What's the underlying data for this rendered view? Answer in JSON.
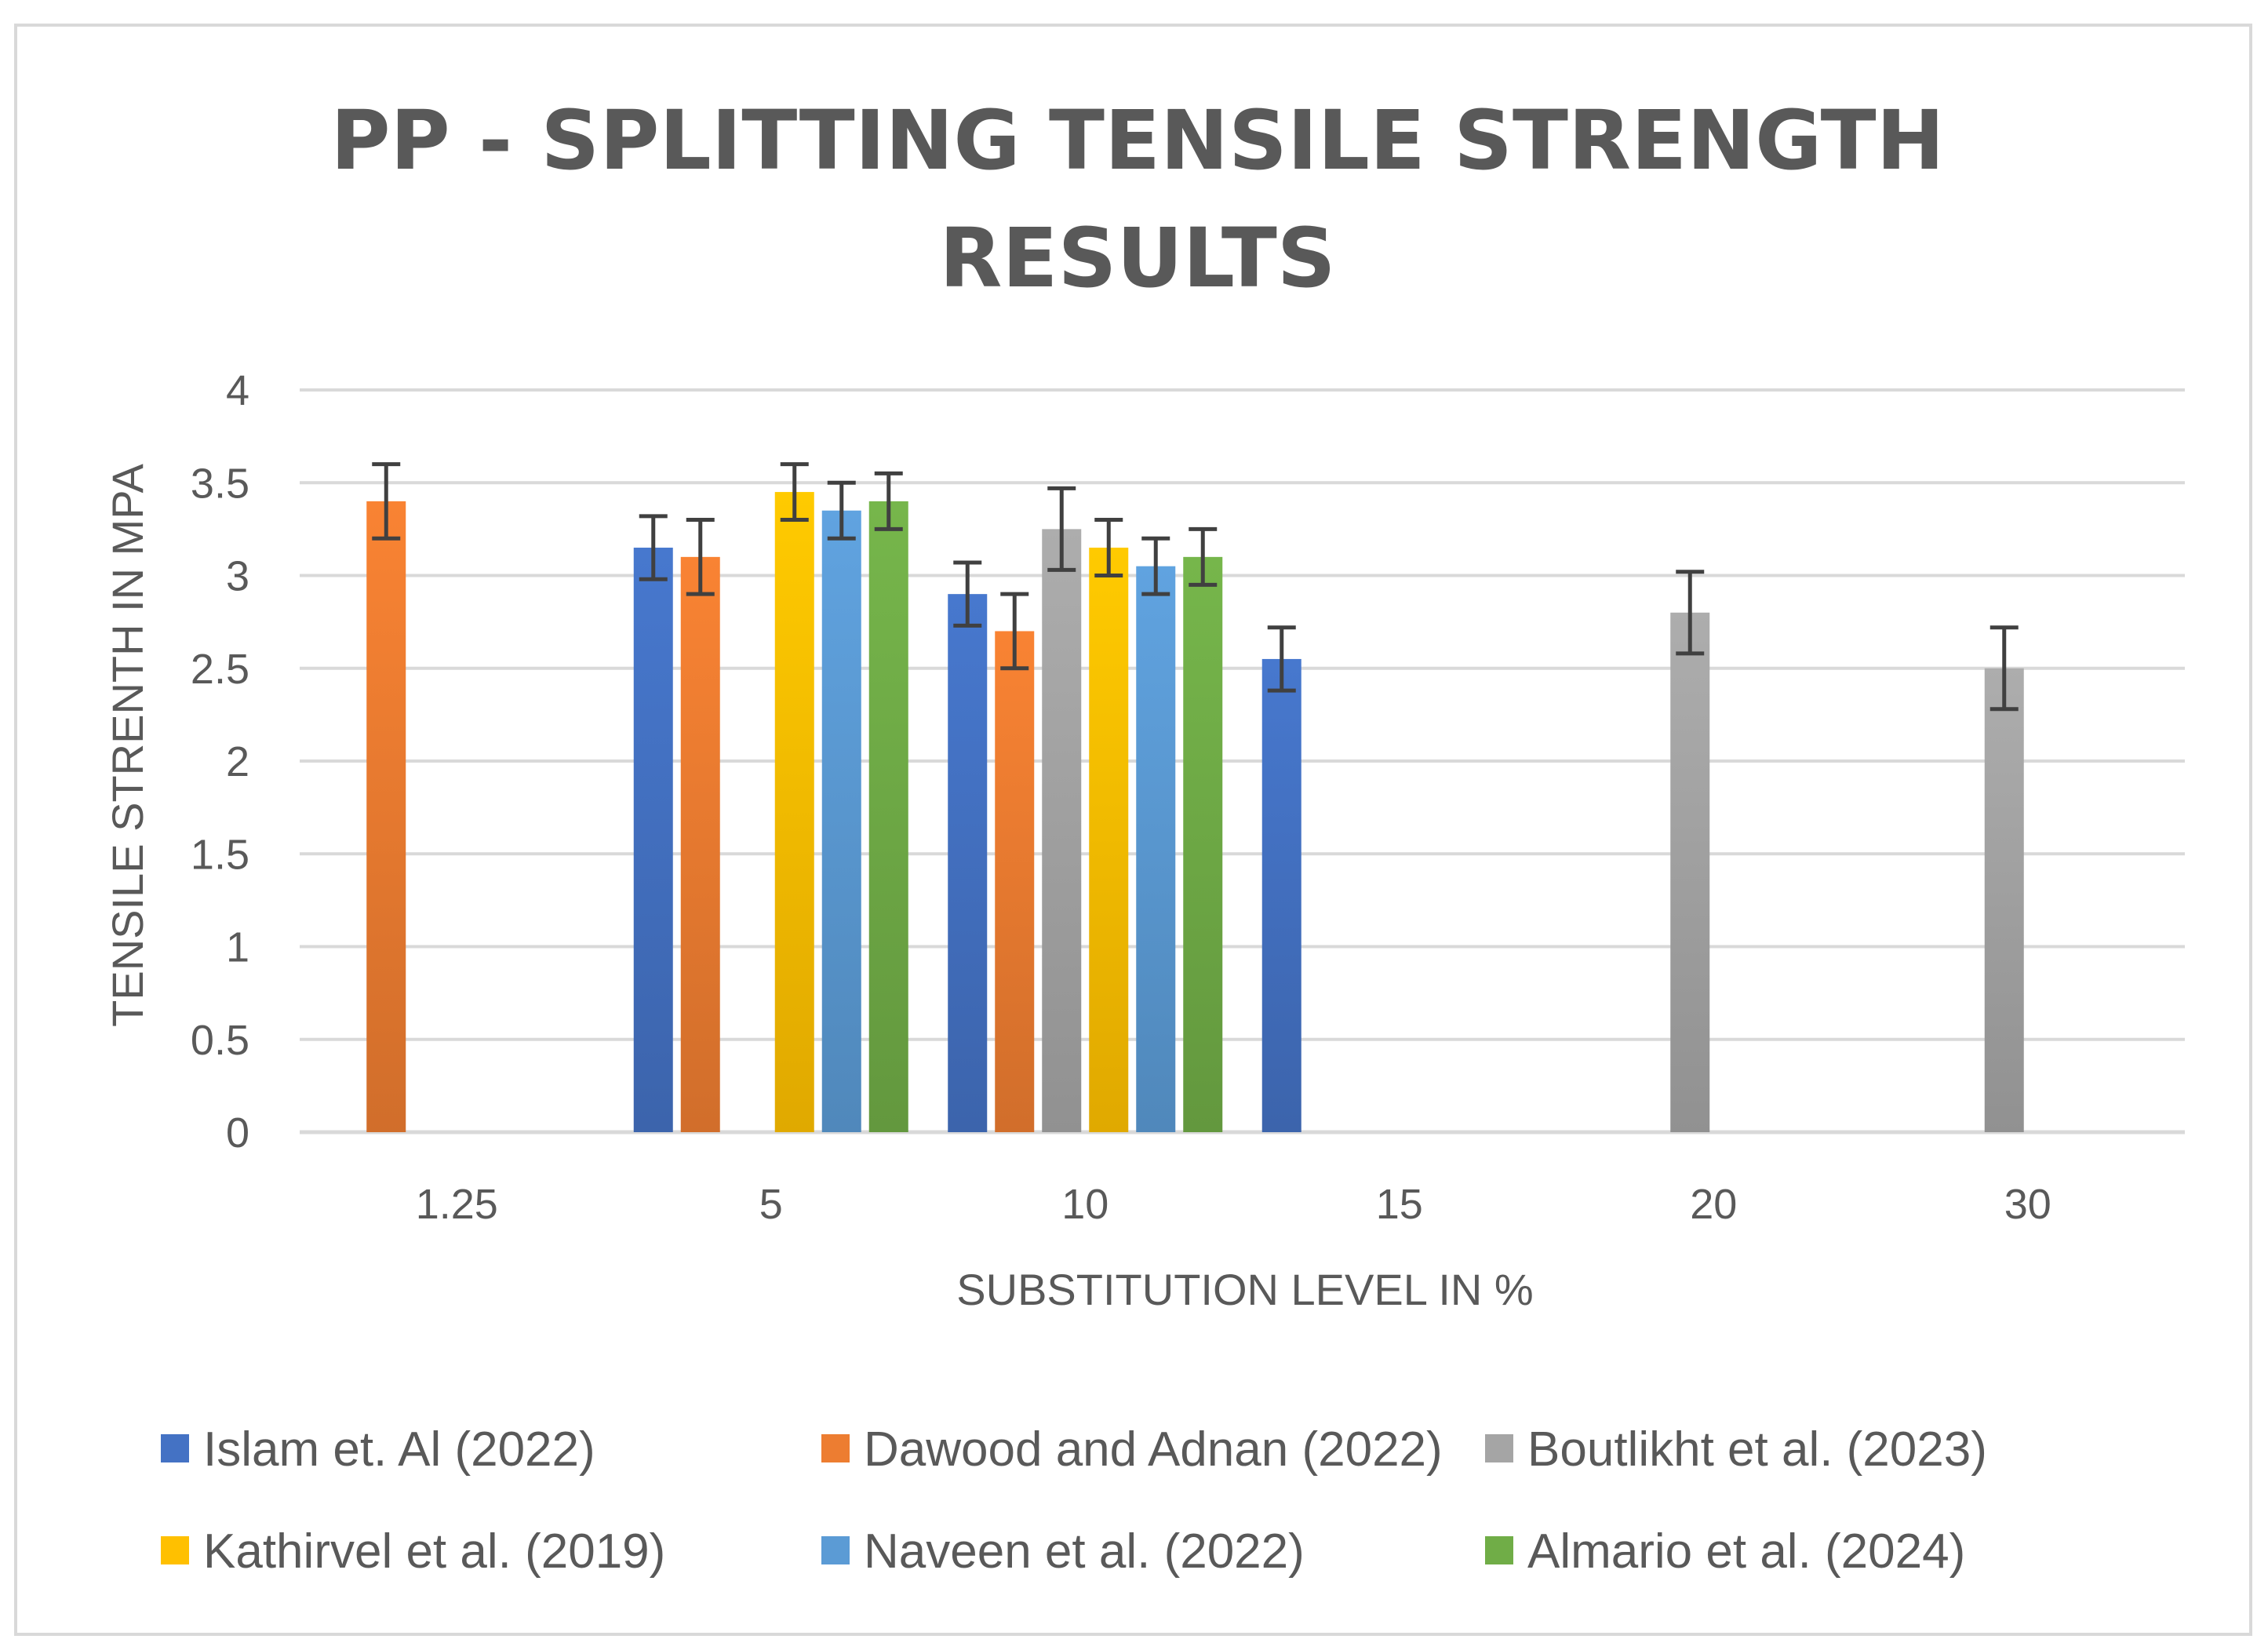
{
  "chart_data": {
    "type": "bar",
    "title_lines": [
      "PP - SPLITTING TENSILE STRENGTH",
      "RESULTS"
    ],
    "xlabel": "SUBSTITUTION LEVEL IN %",
    "ylabel": "TENSILE STRENTH IN MPA",
    "ylim": [
      0,
      4
    ],
    "yticks": [
      "0",
      "0.5",
      "1",
      "1.5",
      "2",
      "2.5",
      "3",
      "3.5",
      "4"
    ],
    "grid": true,
    "legend_position": "bottom",
    "categories": [
      "1.25",
      "5",
      "10",
      "15",
      "20",
      "30"
    ],
    "series": [
      {
        "name": "Islam et. Al (2022)",
        "color": "#4472C4",
        "bars": [
          {
            "category": "5",
            "value": 3.15,
            "err": 0.17
          },
          {
            "category": "10",
            "value": 2.9,
            "err": 0.17
          },
          {
            "category": "15",
            "value": 2.55,
            "err": 0.17
          }
        ]
      },
      {
        "name": "Dawood and Adnan (2022)",
        "color": "#ED7D31",
        "bars": [
          {
            "category": "1.25",
            "value": 3.4,
            "err": 0.2
          },
          {
            "category": "5",
            "value": 3.1,
            "err": 0.2
          },
          {
            "category": "10",
            "value": 2.7,
            "err": 0.2
          }
        ]
      },
      {
        "name": "Boutlikht et al. (2023)",
        "color": "#A5A5A5",
        "bars": [
          {
            "category": "10",
            "value": 3.25,
            "err": 0.22
          },
          {
            "category": "20",
            "value": 2.8,
            "err": 0.22
          },
          {
            "category": "30",
            "value": 2.5,
            "err": 0.22
          }
        ]
      },
      {
        "name": "Kathirvel et al. (2019)",
        "color": "#FFC000",
        "bars": [
          {
            "category": "5",
            "value": 3.45,
            "err": 0.15
          },
          {
            "category": "10",
            "value": 3.15,
            "err": 0.15
          }
        ]
      },
      {
        "name": "Naveen et al. (2022)",
        "color": "#5B9BD5",
        "bars": [
          {
            "category": "5",
            "value": 3.35,
            "err": 0.15
          },
          {
            "category": "10",
            "value": 3.05,
            "err": 0.15
          }
        ]
      },
      {
        "name": "Almario et al. (2024)",
        "color": "#70AD47",
        "bars": [
          {
            "category": "5",
            "value": 3.4,
            "err": 0.15
          },
          {
            "category": "10",
            "value": 3.1,
            "err": 0.15
          }
        ]
      }
    ]
  }
}
